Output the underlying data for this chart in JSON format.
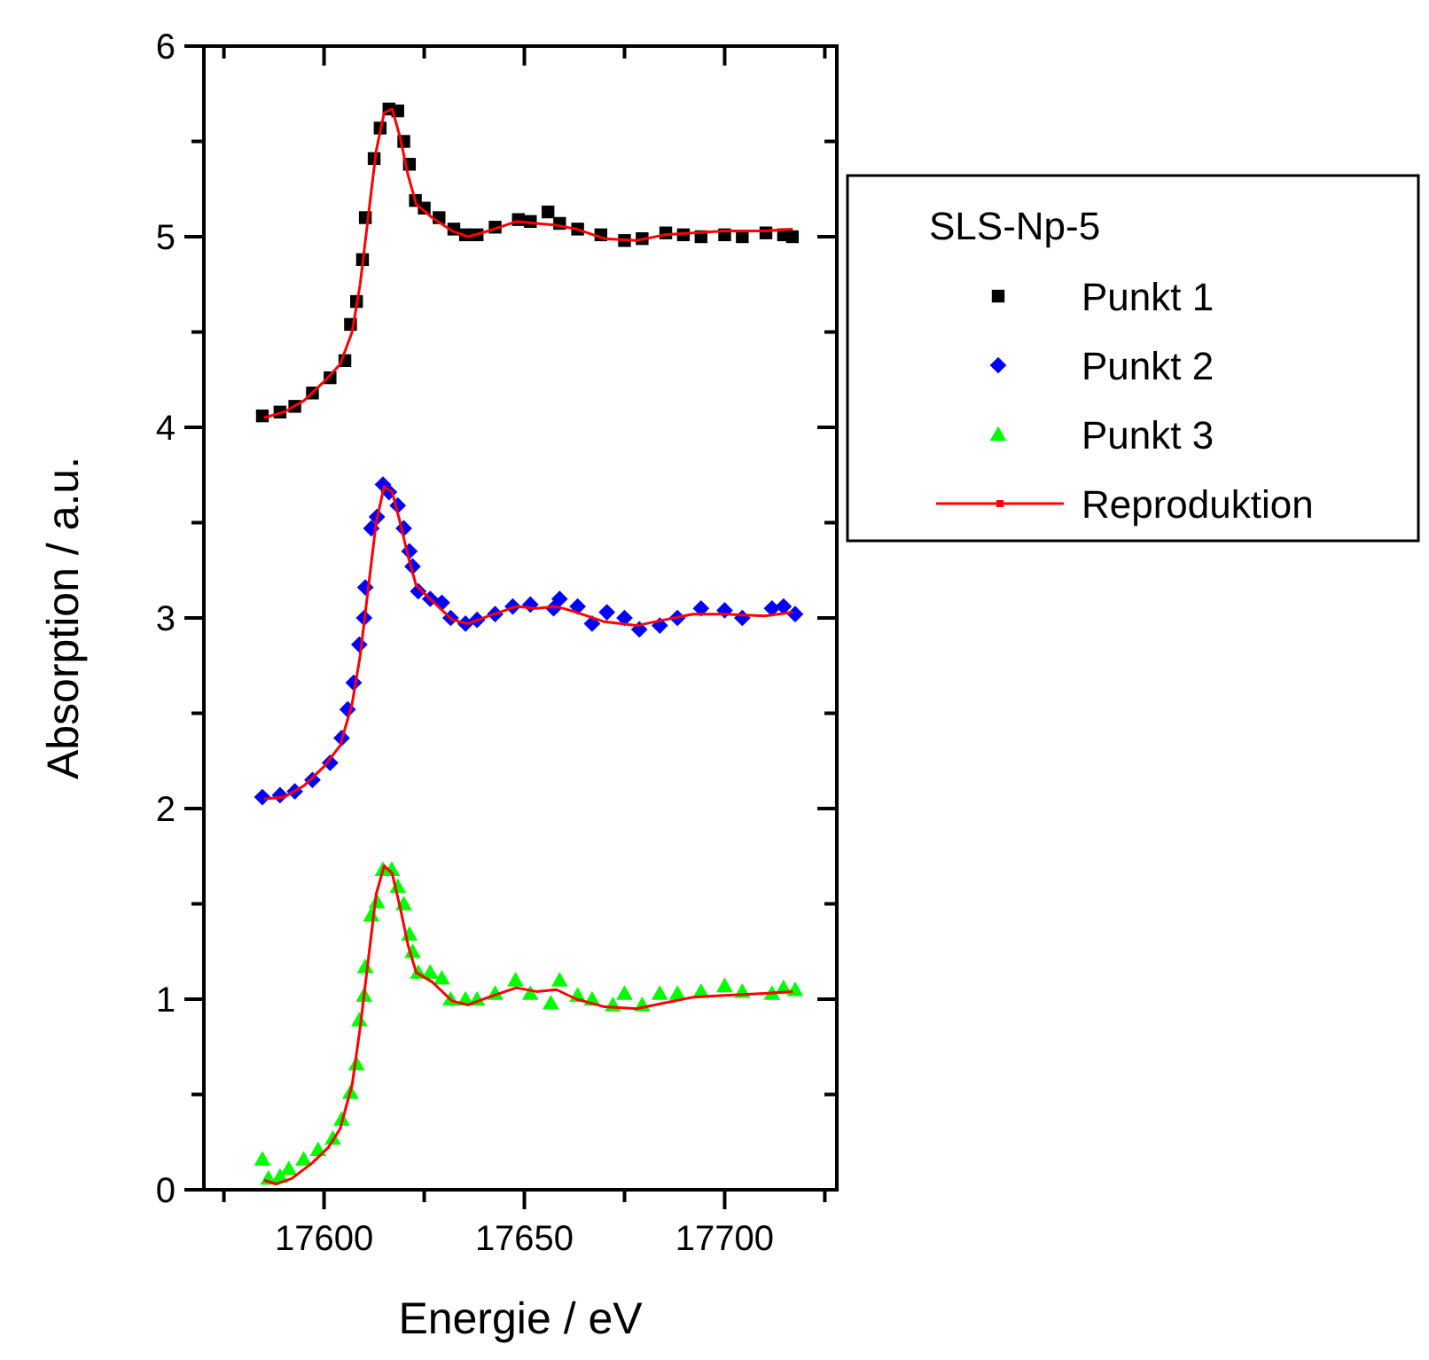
{
  "chart_data": {
    "type": "scatter",
    "xlabel": "Energie / eV",
    "ylabel": "Absorption / a.u.",
    "legend_title": "SLS-Np-5",
    "legend": "right",
    "grid": false,
    "xlim": [
      17570,
      17728
    ],
    "xticks": [
      {
        "value": 17575,
        "label": null
      },
      17600,
      {
        "value": 17625,
        "label": null
      },
      17650,
      {
        "value": 17675,
        "label": null
      },
      17700,
      {
        "value": 17725,
        "label": null
      }
    ],
    "ylim": [
      0,
      6
    ],
    "yticks": [
      0,
      {
        "value": 0.5,
        "label": null
      },
      1,
      {
        "value": 1.5,
        "label": null
      },
      2,
      {
        "value": 2.5,
        "label": null
      },
      3,
      {
        "value": 3.5,
        "label": null
      },
      4,
      {
        "value": 4.5,
        "label": null
      },
      5,
      {
        "value": 5.5,
        "label": null
      },
      6
    ],
    "series": [
      {
        "name": "Punkt 1",
        "marker": "square",
        "color": "#000000",
        "x": [
          17584.6,
          17589,
          17592.7,
          17597.1,
          17601.5,
          17605.2,
          17606.6,
          17608.1,
          17609.6,
          17610.3,
          17612.5,
          17614,
          17616.2,
          17618.4,
          17619.9,
          17621.3,
          17622.8,
          17625,
          17628.7,
          17632.4,
          17635.3,
          17638.2,
          17642.7,
          17648.5,
          17651.5,
          17655.9,
          17658.8,
          17663.3,
          17669.1,
          17675,
          17679.4,
          17685.3,
          17689.7,
          17694.1,
          17700,
          17704.4,
          17710.3,
          17714.7,
          17716.9
        ],
        "values": [
          4.06,
          4.08,
          4.11,
          4.18,
          4.26,
          4.35,
          4.54,
          4.66,
          4.88,
          5.1,
          5.41,
          5.57,
          5.67,
          5.66,
          5.5,
          5.38,
          5.19,
          5.15,
          5.1,
          5.04,
          5.01,
          5.01,
          5.05,
          5.09,
          5.08,
          5.13,
          5.07,
          5.04,
          5.01,
          4.98,
          4.99,
          5.02,
          5.01,
          5.0,
          5.01,
          5.0,
          5.02,
          5.01,
          5.0
        ]
      },
      {
        "name": "Punkt 2",
        "marker": "diamond",
        "color": "#0000ff",
        "x": [
          17584.6,
          17589,
          17592.7,
          17597.1,
          17601.5,
          17604.4,
          17605.9,
          17607.4,
          17608.8,
          17610,
          17610.3,
          17611.8,
          17613.2,
          17614.7,
          17616.2,
          17618.4,
          17619.9,
          17621.3,
          17622.1,
          17623.5,
          17626.5,
          17629.4,
          17631.6,
          17635.3,
          17638.2,
          17642.7,
          17647.1,
          17651.5,
          17657.3,
          17658.8,
          17663.3,
          17666.9,
          17670.6,
          17675,
          17678.7,
          17683.8,
          17688.2,
          17694.1,
          17700,
          17704.4,
          17711.8,
          17714.7,
          17717.6
        ],
        "values": [
          2.06,
          2.07,
          2.09,
          2.15,
          2.24,
          2.37,
          2.52,
          2.66,
          2.86,
          3.0,
          3.16,
          3.47,
          3.53,
          3.7,
          3.66,
          3.59,
          3.47,
          3.35,
          3.27,
          3.14,
          3.1,
          3.08,
          3.0,
          2.97,
          2.99,
          3.02,
          3.06,
          3.07,
          3.05,
          3.1,
          3.06,
          2.97,
          3.03,
          3.0,
          2.94,
          2.96,
          3.0,
          3.05,
          3.04,
          3.0,
          3.05,
          3.06,
          3.02
        ]
      },
      {
        "name": "Punkt 3",
        "marker": "triangle",
        "color": "#00ff00",
        "x": [
          17584.6,
          17586.1,
          17589,
          17591.2,
          17594.9,
          17598.5,
          17602.2,
          17604.4,
          17606.6,
          17608.1,
          17608.8,
          17610,
          17610.3,
          17611.8,
          17613.2,
          17614.7,
          17616.9,
          17618.4,
          17619.9,
          17621.3,
          17622.1,
          17623.5,
          17626.5,
          17629.4,
          17631.6,
          17635.3,
          17638.2,
          17642.7,
          17647.8,
          17651.5,
          17656.6,
          17658.8,
          17663.3,
          17666.9,
          17672.1,
          17675,
          17679.4,
          17683.8,
          17688.2,
          17694.1,
          17700,
          17704.4,
          17711.8,
          17714.7,
          17717.6
        ],
        "values": [
          0.16,
          0.06,
          0.07,
          0.11,
          0.16,
          0.21,
          0.27,
          0.37,
          0.51,
          0.66,
          0.89,
          1.02,
          1.17,
          1.44,
          1.51,
          1.68,
          1.68,
          1.59,
          1.5,
          1.34,
          1.25,
          1.14,
          1.14,
          1.11,
          1.0,
          1.0,
          1.0,
          1.03,
          1.1,
          1.03,
          0.98,
          1.1,
          1.02,
          1.0,
          0.97,
          1.03,
          0.97,
          1.03,
          1.03,
          1.04,
          1.07,
          1.04,
          1.03,
          1.06,
          1.05
        ]
      },
      {
        "name": "Reproduktion",
        "type": "line",
        "color": "#ff0000",
        "x": [
          17585,
          17590,
          17595,
          17600,
          17604,
          17607,
          17609,
          17611,
          17613,
          17615,
          17617,
          17619,
          17621,
          17623,
          17627,
          17632,
          17636,
          17641,
          17648,
          17653,
          17658,
          17663,
          17670,
          17678,
          17685,
          17692,
          17700,
          17710,
          17717
        ],
        "values": [
          4.05,
          4.08,
          4.14,
          4.24,
          4.33,
          4.5,
          4.75,
          5.1,
          5.45,
          5.65,
          5.67,
          5.52,
          5.32,
          5.17,
          5.1,
          5.03,
          5.0,
          5.03,
          5.08,
          5.07,
          5.06,
          5.04,
          4.99,
          4.98,
          5.01,
          5.02,
          5.03,
          5.03,
          5.04
        ]
      },
      {
        "type": "line",
        "color": "#ff0000",
        "x": [
          17585,
          17590,
          17595,
          17600,
          17604,
          17607,
          17609,
          17611,
          17613,
          17615,
          17617,
          17619,
          17621,
          17623,
          17627,
          17632,
          17636,
          17641,
          17648,
          17653,
          17658,
          17663,
          17670,
          17678,
          17685,
          17692,
          17700,
          17710,
          17717
        ],
        "values": [
          2.05,
          2.06,
          2.12,
          2.22,
          2.33,
          2.55,
          2.8,
          3.15,
          3.5,
          3.69,
          3.66,
          3.5,
          3.32,
          3.17,
          3.09,
          2.99,
          2.97,
          3.01,
          3.06,
          3.05,
          3.06,
          3.03,
          2.98,
          2.96,
          2.99,
          3.02,
          3.02,
          3.01,
          3.03
        ]
      },
      {
        "type": "line",
        "color": "#ff0000",
        "x": [
          17585,
          17588,
          17592,
          17597,
          17601,
          17604,
          17607,
          17609,
          17611,
          17613,
          17615,
          17617,
          17619,
          17621,
          17623,
          17627,
          17632,
          17636,
          17641,
          17648,
          17653,
          17658,
          17663,
          17670,
          17678,
          17685,
          17692,
          17700,
          17710,
          17717
        ],
        "values": [
          0.05,
          0.03,
          0.06,
          0.14,
          0.22,
          0.32,
          0.55,
          0.85,
          1.2,
          1.55,
          1.7,
          1.66,
          1.48,
          1.28,
          1.14,
          1.09,
          0.99,
          0.97,
          1.01,
          1.06,
          1.04,
          1.05,
          1.0,
          0.96,
          0.95,
          0.98,
          1.01,
          1.02,
          1.03,
          1.04
        ]
      }
    ]
  }
}
